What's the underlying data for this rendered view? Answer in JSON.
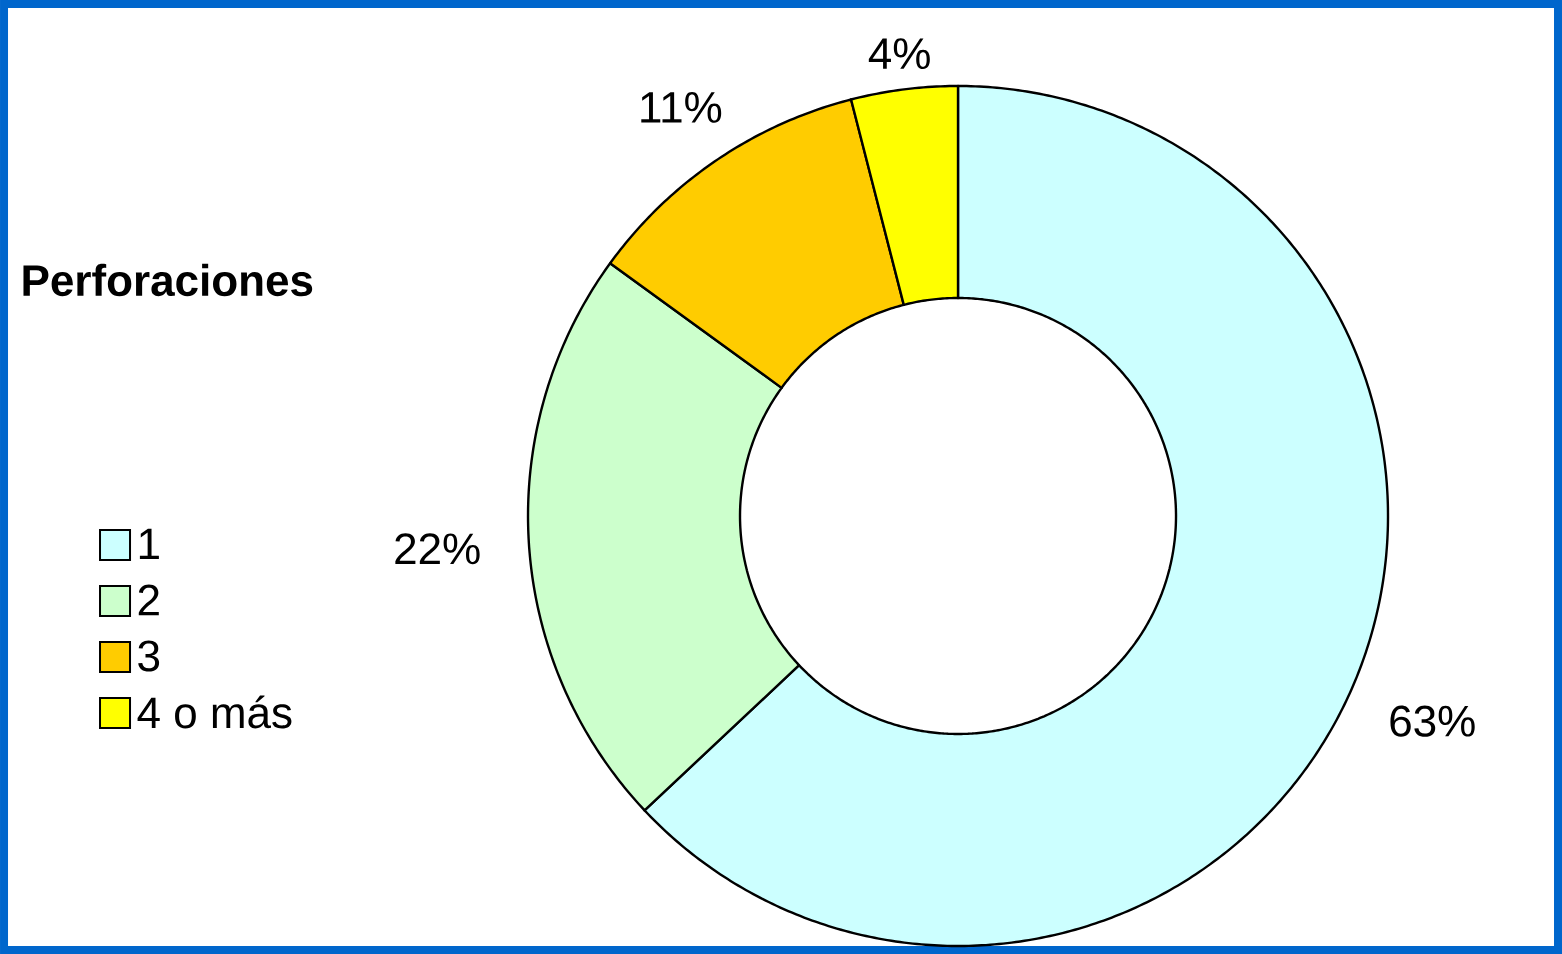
{
  "chart_data": {
    "type": "donut",
    "legend_title": "**Perforaciones**",
    "categories": [
      "1",
      "2",
      "3",
      "4 o más"
    ],
    "values": [
      63,
      22,
      11,
      4
    ],
    "colors": [
      "#ccffff",
      "#ccffcc",
      "#ffcc00",
      "#ffff00"
    ],
    "value_labels": [
      "63%",
      "22%",
      "11%",
      "4%"
    ],
    "legend": "left"
  }
}
